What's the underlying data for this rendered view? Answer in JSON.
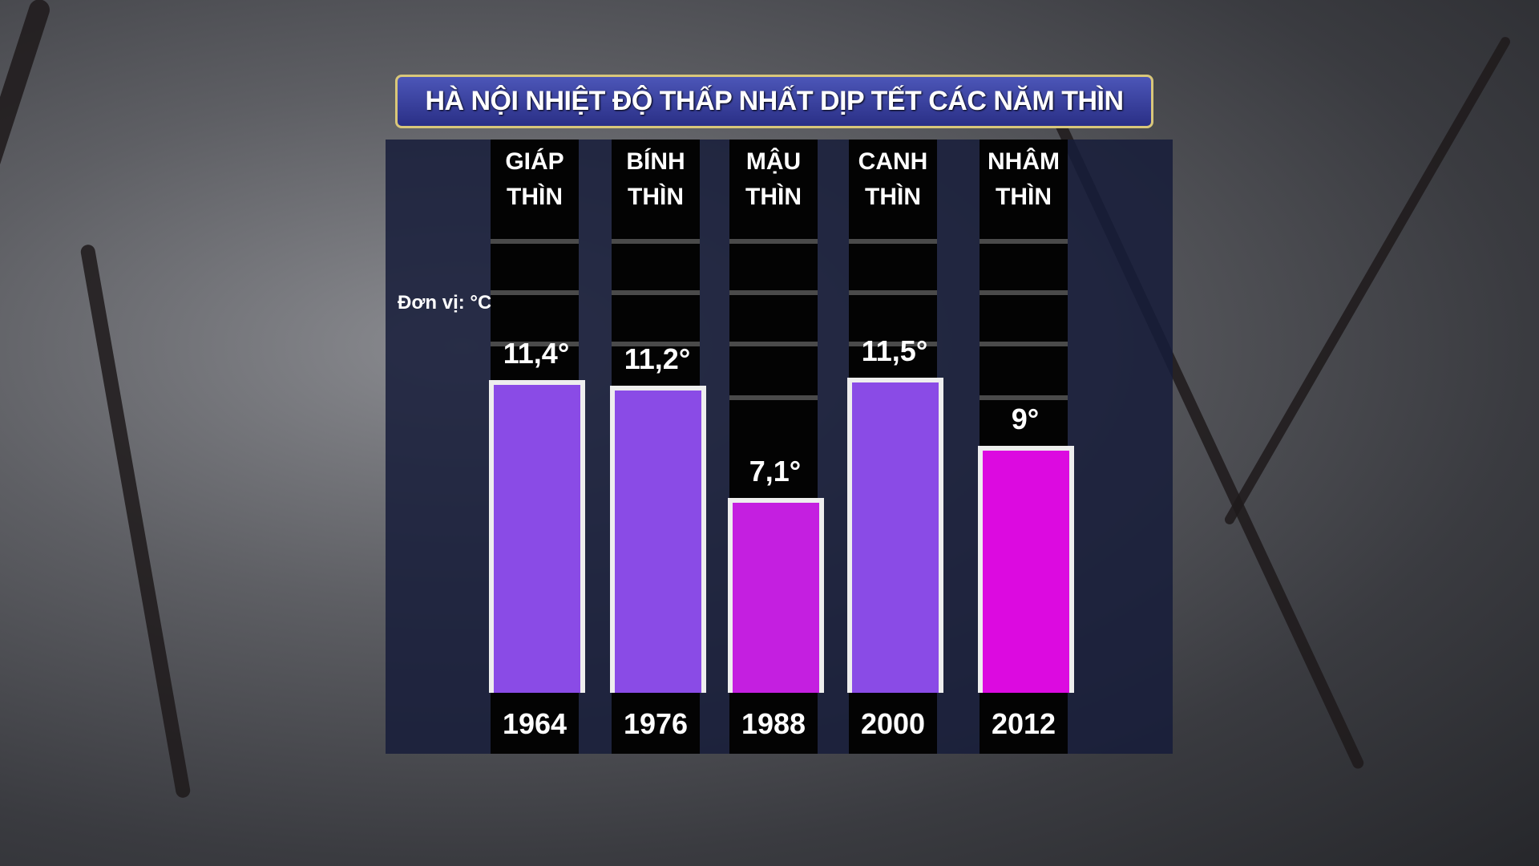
{
  "chart_data": {
    "type": "bar",
    "title": "HÀ NỘI NHIỆT ĐỘ THẤP NHẤT DỊP TẾT CÁC NĂM THÌN",
    "unit_label": "Đơn vị: °C",
    "categories": [
      "1964",
      "1976",
      "1988",
      "2000",
      "2012"
    ],
    "category_names": [
      [
        "GIÁP",
        "THÌN"
      ],
      [
        "BÍNH",
        "THÌN"
      ],
      [
        "MẬU",
        "THÌN"
      ],
      [
        "CANH",
        "THÌN"
      ],
      [
        "NHÂM",
        "THÌN"
      ]
    ],
    "values": [
      11.4,
      11.2,
      7.1,
      11.5,
      9
    ],
    "value_labels": [
      "11,4°",
      "11,2°",
      "7,1°",
      "11,5°",
      "9°"
    ],
    "bar_colors": [
      "#8a4be6",
      "#8a4be6",
      "#c41fe0",
      "#8a4be6",
      "#dc0ae0"
    ],
    "ylim": [
      0,
      12
    ]
  }
}
